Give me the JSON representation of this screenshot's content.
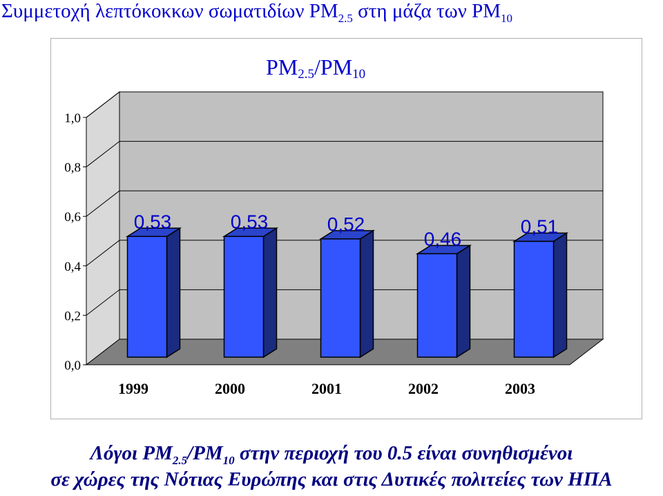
{
  "heading": {
    "text_main": "Συμμετοχή λεπτόκοκκων σωματιδίων PM",
    "sub1": "2.5",
    "text_mid": " στη μάζα των PM",
    "sub2": "10"
  },
  "chart_data": {
    "type": "bar",
    "title_main": "PM",
    "title_sub1": "2.5",
    "title_mid": "/PM",
    "title_sub2": "10",
    "categories": [
      "1999",
      "2000",
      "2001",
      "2002",
      "2003"
    ],
    "values": [
      0.53,
      0.53,
      0.52,
      0.46,
      0.51
    ],
    "value_labels": [
      "0,53",
      "0,53",
      "0,52",
      "0,46",
      "0,51"
    ],
    "ylim": [
      0,
      1.0
    ],
    "yticks": [
      0,
      0.2,
      0.4,
      0.6,
      0.8,
      1.0
    ],
    "ytick_labels": [
      "0,0",
      "0,2",
      "0,4",
      "0,6",
      "0,8",
      "1,0"
    ],
    "grid": true,
    "three_d": true,
    "colors": {
      "bar_front": "#3355ff",
      "bar_side": "#1a2b80",
      "bar_top": "#2a44cc",
      "back_wall": "#c0c0c0",
      "side_wall": "#d9d9d9",
      "floor": "#808080",
      "title": "#0000cc",
      "value_label": "#0000cc"
    }
  },
  "caption": {
    "line1_a": "Λόγοι PM",
    "line1_sub1": "2.5",
    "line1_b": "/PM",
    "line1_sub2": "10",
    "line1_c": " στην περιοχή του 0.5 είναι συνηθισμένοι",
    "line2": "σε χώρες της Νότιας Ευρώπης και στις Δυτικές πολιτείες των ΗΠΑ"
  }
}
